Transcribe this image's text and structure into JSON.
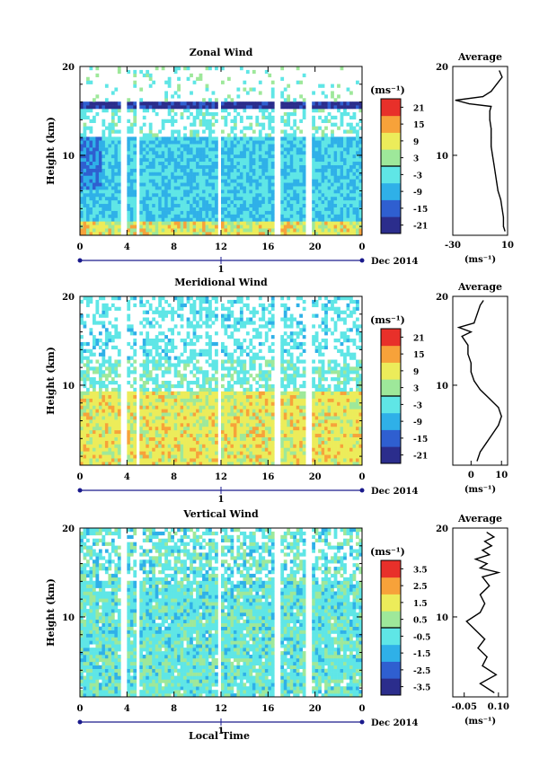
{
  "figure": {
    "date_label": "Dec 2014",
    "day_label": "1",
    "xlabel_bottom": "Local Time"
  },
  "chart_data": [
    {
      "type": "heatmap",
      "title": "Zonal Wind",
      "ylabel": "Height (km)",
      "x_ticks": [
        "0",
        "4",
        "8",
        "12",
        "16",
        "20",
        "0"
      ],
      "y_ticks": [
        "20",
        "10"
      ],
      "xlim": [
        0,
        24
      ],
      "ylim": [
        1,
        20
      ],
      "colorbar": {
        "unit": "(ms⁻¹)",
        "ticks": [
          "21",
          "15",
          "9",
          "3",
          "-3",
          "-9",
          "-15",
          "-21"
        ],
        "range": [
          -24,
          24
        ]
      },
      "profile": {
        "title": "Average",
        "xlabel": "(ms⁻¹)",
        "x_ticks": [
          "-30",
          "10"
        ],
        "xlim": [
          -30,
          10
        ],
        "points": [
          [
            8,
            1.5
          ],
          [
            7,
            2
          ],
          [
            7,
            3
          ],
          [
            6,
            4
          ],
          [
            5,
            5
          ],
          [
            3,
            6
          ],
          [
            2,
            7
          ],
          [
            1,
            8
          ],
          [
            0,
            9
          ],
          [
            -1,
            10
          ],
          [
            -2,
            11
          ],
          [
            -2,
            12
          ],
          [
            -2,
            13
          ],
          [
            -3,
            14
          ],
          [
            -3,
            15
          ],
          [
            -2,
            15.5
          ],
          [
            -18,
            15.8
          ],
          [
            -28,
            16.2
          ],
          [
            -8,
            16.6
          ],
          [
            -2,
            17.2
          ],
          [
            2,
            18
          ],
          [
            6,
            18.8
          ],
          [
            4,
            19.5
          ]
        ]
      }
    },
    {
      "type": "heatmap",
      "title": "Meridional Wind",
      "ylabel": "Height (km)",
      "x_ticks": [
        "0",
        "4",
        "8",
        "12",
        "16",
        "20",
        "0"
      ],
      "y_ticks": [
        "20",
        "10"
      ],
      "xlim": [
        0,
        24
      ],
      "ylim": [
        1,
        20
      ],
      "colorbar": {
        "unit": "(ms⁻¹)",
        "ticks": [
          "21",
          "15",
          "9",
          "3",
          "-3",
          "-9",
          "-15",
          "-21"
        ],
        "range": [
          -24,
          24
        ]
      },
      "profile": {
        "title": "Average",
        "xlabel": "(ms⁻¹)",
        "x_ticks": [
          "0",
          "10"
        ],
        "xlim": [
          -6,
          12
        ],
        "points": [
          [
            2,
            1.5
          ],
          [
            3,
            2.5
          ],
          [
            5,
            3.5
          ],
          [
            7,
            4.5
          ],
          [
            9,
            5.5
          ],
          [
            10,
            6.5
          ],
          [
            9,
            7.5
          ],
          [
            6,
            8.5
          ],
          [
            3,
            9.5
          ],
          [
            1,
            10.5
          ],
          [
            0,
            11.5
          ],
          [
            0,
            12.5
          ],
          [
            -1,
            13.5
          ],
          [
            -1,
            14.5
          ],
          [
            -3,
            15.5
          ],
          [
            0,
            16
          ],
          [
            -4,
            16.5
          ],
          [
            1,
            17
          ],
          [
            2,
            18
          ],
          [
            3,
            19
          ],
          [
            4,
            19.5
          ]
        ]
      }
    },
    {
      "type": "heatmap",
      "title": "Vertical Wind",
      "ylabel": "Height (km)",
      "x_ticks": [
        "0",
        "4",
        "8",
        "12",
        "16",
        "20",
        "0"
      ],
      "y_ticks": [
        "20",
        "10"
      ],
      "xlim": [
        0,
        24
      ],
      "ylim": [
        1,
        20
      ],
      "colorbar": {
        "unit": "(ms⁻¹)",
        "ticks": [
          "3.5",
          "2.5",
          "1.5",
          "0.5",
          "-0.5",
          "-1.5",
          "-2.5",
          "-3.5"
        ],
        "range": [
          -4,
          4
        ]
      },
      "profile": {
        "title": "Average",
        "xlabel": "(ms⁻¹)",
        "x_ticks": [
          "-0.05",
          "0.10"
        ],
        "xlim": [
          -0.1,
          0.14
        ],
        "points": [
          [
            0.08,
            1.5
          ],
          [
            0.02,
            2.5
          ],
          [
            0.09,
            3.5
          ],
          [
            0.03,
            4.5
          ],
          [
            0.05,
            5.5
          ],
          [
            0.01,
            6.5
          ],
          [
            0.04,
            7.5
          ],
          [
            0.0,
            8.5
          ],
          [
            -0.04,
            9.5
          ],
          [
            0.02,
            10.5
          ],
          [
            0.04,
            11.5
          ],
          [
            0.02,
            12.5
          ],
          [
            0.06,
            13.5
          ],
          [
            0.03,
            14.5
          ],
          [
            0.1,
            15
          ],
          [
            0.02,
            15.5
          ],
          [
            0.05,
            16
          ],
          [
            0.0,
            16.5
          ],
          [
            0.06,
            17
          ],
          [
            0.03,
            17.5
          ],
          [
            0.07,
            18
          ],
          [
            0.04,
            18.5
          ],
          [
            0.08,
            19
          ],
          [
            0.05,
            19.5
          ]
        ]
      }
    }
  ]
}
